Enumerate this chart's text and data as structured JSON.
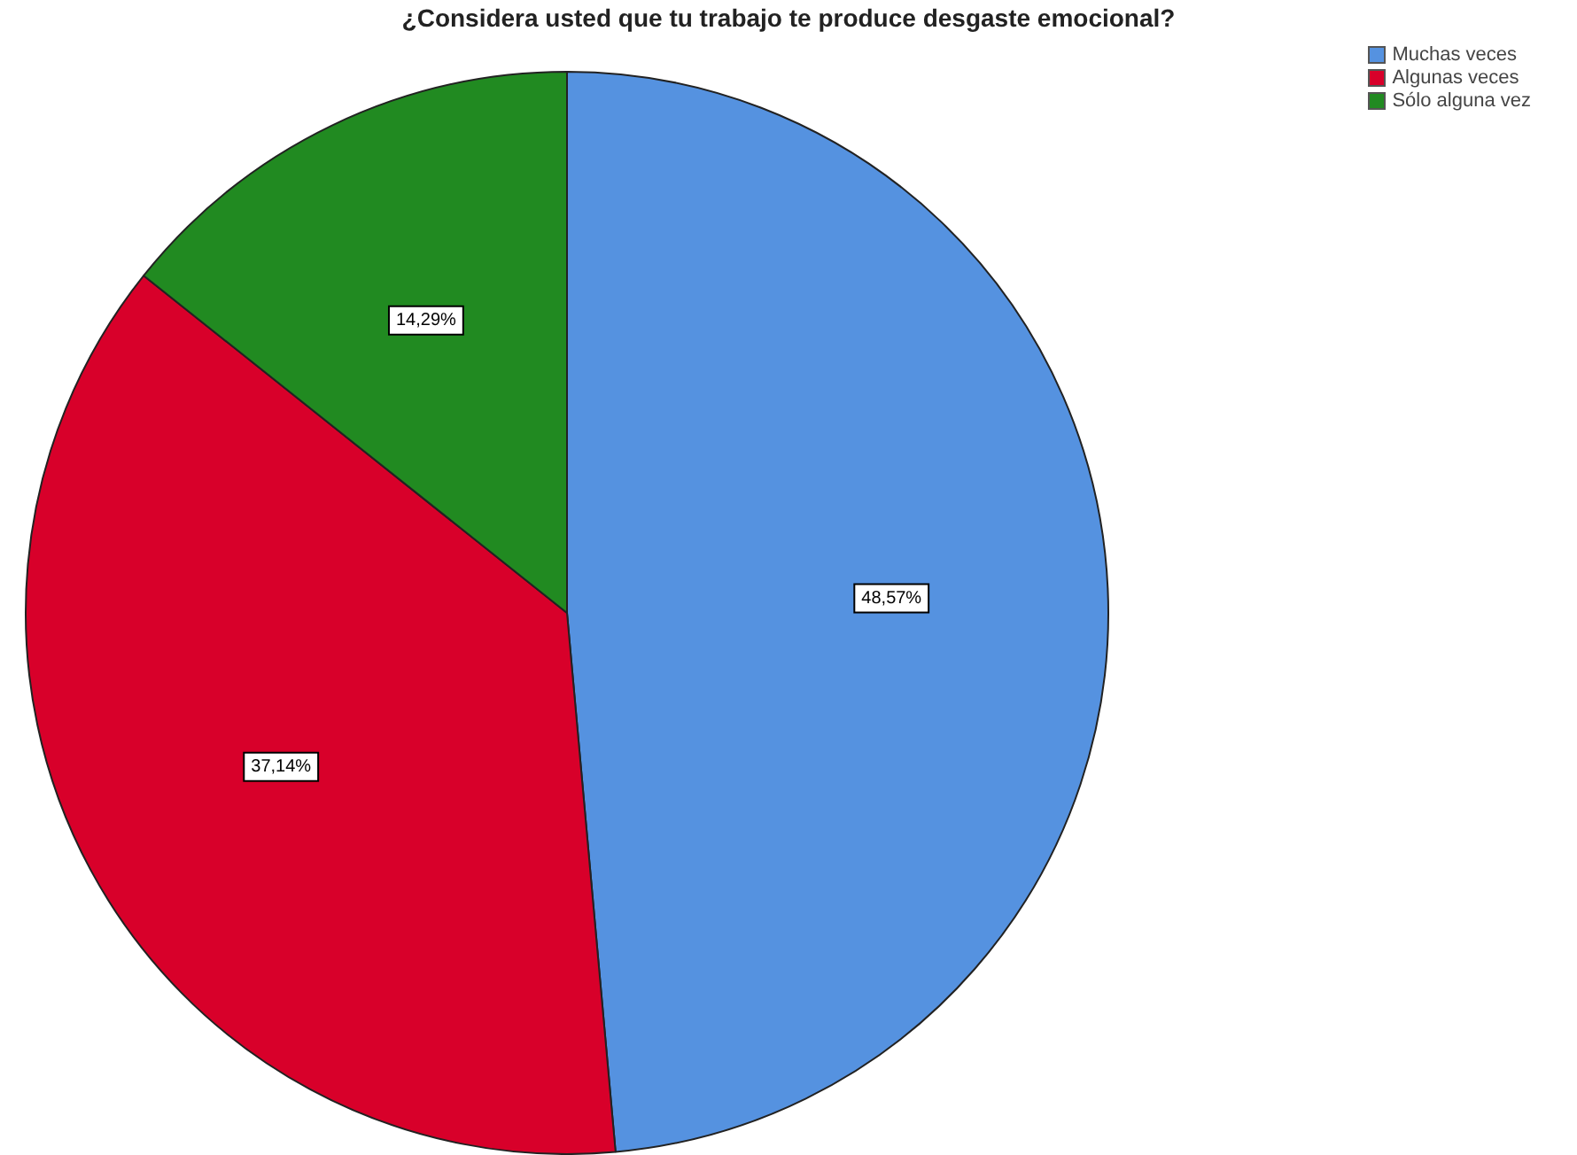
{
  "chart_data": {
    "type": "pie",
    "title": "¿Considera usted que tu trabajo te produce desgaste emocional?",
    "categories": [
      "Muchas veces",
      "Algunas veces",
      "Sólo alguna vez"
    ],
    "values": [
      48.57,
      37.14,
      14.29
    ],
    "colors": [
      "#5592e0",
      "#d8002a",
      "#218a21"
    ],
    "value_labels": [
      "48,57%",
      "37,14%",
      "14,29%"
    ],
    "legend": "top right"
  }
}
